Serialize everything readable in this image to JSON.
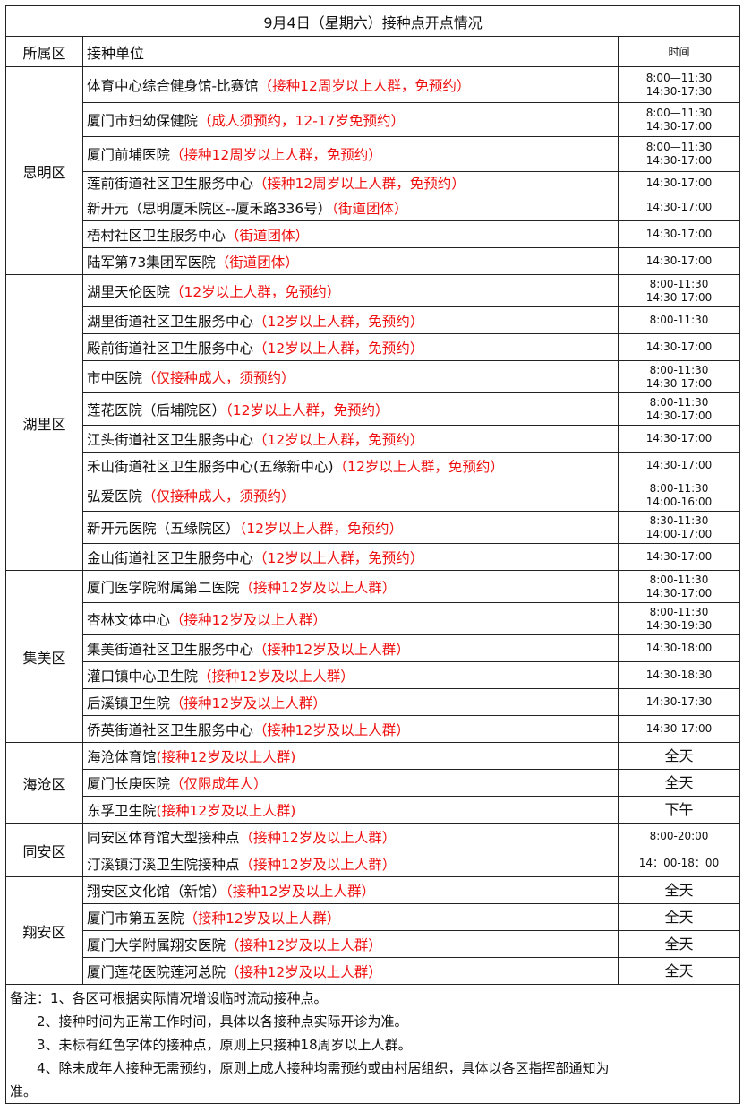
{
  "title": "9月4日（星期六）接种点开点情况",
  "headers": {
    "district": "所属区",
    "site": "接种单位",
    "time": "时间"
  },
  "districts": [
    {
      "name": "思明区",
      "sites": [
        {
          "name": "体育中心综合健身馆-比赛馆",
          "note": "（接种12周岁以上人群，免预约）",
          "time": [
            "8:00—11:30",
            "14:30-17:30"
          ]
        },
        {
          "name": "厦门市妇幼保健院",
          "note": "（成人须预约，12-17岁免预约）",
          "time": [
            "8:00—11:30",
            "14:30-17:00"
          ]
        },
        {
          "name": "厦门前埔医院",
          "note": "（接种12周岁以上人群，免预约）",
          "time": [
            "8:00—11:30",
            "14:30-17:00"
          ]
        },
        {
          "name": "莲前街道社区卫生服务中心",
          "note": "（接种12周岁以上人群，免预约）",
          "time": [
            "14:30-17:00"
          ]
        },
        {
          "name": "新开元（思明厦禾院区--厦禾路336号）",
          "note": "（街道团体）",
          "time": [
            "14:30-17:00"
          ]
        },
        {
          "name": "梧村社区卫生服务中心",
          "note": "（街道团体）",
          "time": [
            "14:30-17:00"
          ]
        },
        {
          "name": "陆军第73集团军医院",
          "note": "（街道团体）",
          "time": [
            "14:30-17:00"
          ]
        }
      ]
    },
    {
      "name": "湖里区",
      "sites": [
        {
          "name": "湖里天伦医院",
          "note": "（12岁以上人群，免预约）",
          "time": [
            "8:00-11:30",
            "14:30-17:00"
          ]
        },
        {
          "name": "湖里街道社区卫生服务中心",
          "note": "（12岁以上人群，免预约）",
          "time": [
            "8:00-11:30"
          ]
        },
        {
          "name": "殿前街道社区卫生服务中心",
          "note": "（12岁以上人群，免预约）",
          "time": [
            "14:30-17:00"
          ]
        },
        {
          "name": "市中医院",
          "note": "（仅接种成人，须预约）",
          "time": [
            "8:00-11:30",
            "14:30-17:00"
          ]
        },
        {
          "name": "莲花医院（后埔院区）",
          "note": "（12岁以上人群，免预约）",
          "time": [
            "8:00-11:30",
            "14:30-17:00"
          ]
        },
        {
          "name": "江头街道社区卫生服务中心",
          "note": "（12岁以上人群，免预约）",
          "time": [
            "14:30-17:00"
          ]
        },
        {
          "name": "禾山街道社区卫生服务中心(五缘新中心)",
          "note": "（12岁以上人群，免预约）",
          "time": [
            "14:30-17:00"
          ]
        },
        {
          "name": "弘爱医院",
          "note": "（仅接种成人，须预约）",
          "time": [
            "8:00-11:30",
            "14:00-16:00"
          ]
        },
        {
          "name": "新开元医院（五缘院区）",
          "note": "（12岁以上人群，免预约）",
          "time": [
            "8:30-11:30",
            "14:00-17:00"
          ]
        },
        {
          "name": "金山街道社区卫生服务中心",
          "note": "（12岁以上人群，免预约）",
          "time": [
            "14:30-17:00"
          ]
        }
      ]
    },
    {
      "name": "集美区",
      "sites": [
        {
          "name": "厦门医学院附属第二医院",
          "note": "（接种12岁及以上人群）",
          "time": [
            "8:00-11:30",
            "14:30-17:00"
          ]
        },
        {
          "name": "杏林文体中心",
          "note": "（接种12岁及以上人群）",
          "time": [
            "8:00-11:30",
            "14:30-19:30"
          ]
        },
        {
          "name": "集美街道社区卫生服务中心",
          "note": "（接种12岁及以上人群）",
          "time": [
            "14:30-18:00"
          ]
        },
        {
          "name": "灌口镇中心卫生院",
          "note": "（接种12岁及以上人群）",
          "time": [
            "14:30-18:30"
          ]
        },
        {
          "name": "后溪镇卫生院",
          "note": "（接种12岁及以上人群）",
          "time": [
            "14:30-17:30"
          ]
        },
        {
          "name": "侨英街道社区卫生服务中心",
          "note": "（接种12岁及以上人群）",
          "time": [
            "14:30-17:00"
          ]
        }
      ]
    },
    {
      "name": "海沧区",
      "sites": [
        {
          "name": "海沧体育馆",
          "note": "(接种12岁及以上人群)",
          "time": [
            "全天"
          ]
        },
        {
          "name": "厦门长庚医院",
          "note": "（仅限成年人）",
          "time": [
            "全天"
          ]
        },
        {
          "name": "东孚卫生院",
          "note": "(接种12岁及以上人群)",
          "time": [
            "下午"
          ]
        }
      ]
    },
    {
      "name": "同安区",
      "sites": [
        {
          "name": "同安区体育馆大型接种点",
          "note": "（接种12岁及以上人群）",
          "time": [
            "8:00-20:00"
          ]
        },
        {
          "name": "汀溪镇汀溪卫生院接种点",
          "note": "（接种12岁及以上人群）",
          "time": [
            "14：00-18：00"
          ]
        }
      ]
    },
    {
      "name": "翔安区",
      "sites": [
        {
          "name": "翔安区文化馆（新馆）",
          "note": "（接种12岁及以上人群）",
          "time": [
            "全天"
          ]
        },
        {
          "name": "厦门市第五医院",
          "note": "（接种12岁及以上人群）",
          "time": [
            "全天"
          ]
        },
        {
          "name": "厦门大学附属翔安医院",
          "note": "（接种12岁及以上人群）",
          "time": [
            "全天"
          ]
        },
        {
          "name": "厦门莲花医院莲河总院",
          "note": "（接种12岁及以上人群）",
          "time": [
            "全天"
          ]
        }
      ]
    }
  ],
  "notes": [
    "备注：1、各区可根据实际情况增设临时流动接种点。",
    "2、接种时间为正常工作时间，具体以各接种点实际开诊为准。",
    "3、未标有红色字体的接种点，原则上只接种18周岁以上人群。",
    "4、除未成年人接种无需预约，原则上成人接种均需预约或由村居组织，具体以各区指挥部通知为",
    "准。"
  ],
  "colors": {
    "highlight": "#f01010",
    "border": "#222222"
  }
}
